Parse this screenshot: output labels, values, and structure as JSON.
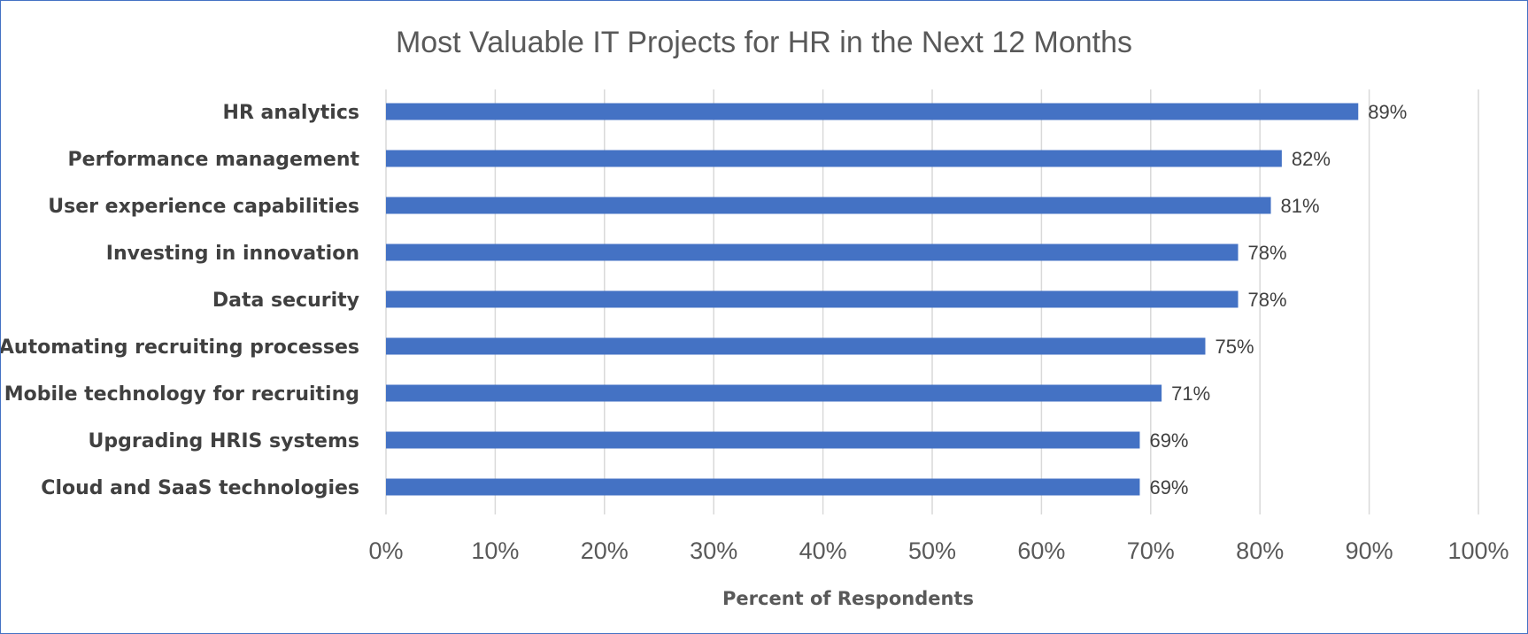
{
  "chart_data": {
    "type": "bar",
    "orientation": "horizontal",
    "title": "Most Valuable IT Projects for HR in the Next 12 Months",
    "xlabel": "Percent of Respondents",
    "ylabel": "",
    "categories": [
      "HR analytics",
      "Performance management",
      "User experience capabilities",
      "Investing in innovation",
      "Data security",
      "Automating recruiting processes",
      "Mobile technology for recruiting",
      "Upgrading HRIS systems",
      "Cloud and SaaS technologies"
    ],
    "values": [
      89,
      82,
      81,
      78,
      78,
      75,
      71,
      69,
      69
    ],
    "data_labels": [
      "89%",
      "82%",
      "81%",
      "78%",
      "78%",
      "75%",
      "71%",
      "69%",
      "69%"
    ],
    "xlim": [
      0,
      100
    ],
    "xticks": [
      "0%",
      "10%",
      "20%",
      "30%",
      "40%",
      "50%",
      "60%",
      "70%",
      "80%",
      "90%",
      "100%"
    ],
    "grid": "vertical",
    "legend": "none",
    "bar_color": "#4472c4",
    "border_color": "#4472c4"
  }
}
